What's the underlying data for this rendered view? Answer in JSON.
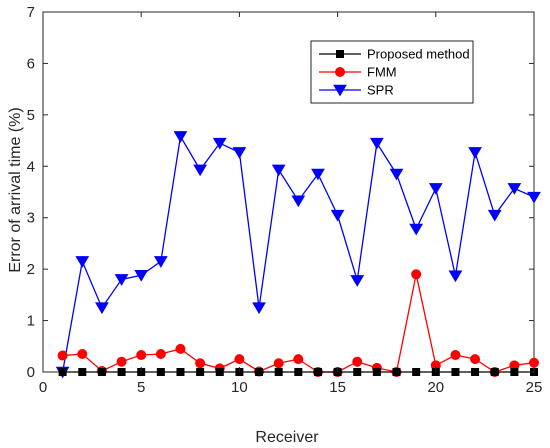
{
  "chart_data": {
    "type": "line",
    "xlabel": "Receiver",
    "ylabel": "Error of arrival time (%)",
    "xlim": [
      0,
      25
    ],
    "ylim": [
      0,
      7
    ],
    "xticks": [
      0,
      5,
      10,
      15,
      20,
      25
    ],
    "yticks": [
      0,
      1,
      2,
      3,
      4,
      5,
      6,
      7
    ],
    "grid": false,
    "legend_position": "top-right",
    "x": [
      1,
      2,
      3,
      4,
      5,
      6,
      7,
      8,
      9,
      10,
      11,
      12,
      13,
      14,
      15,
      16,
      17,
      18,
      19,
      20,
      21,
      22,
      23,
      24,
      25
    ],
    "series": [
      {
        "name": "Proposed method",
        "color": "#000000",
        "marker": "square",
        "values": [
          0,
          0,
          0,
          0,
          0,
          0,
          0,
          0,
          0,
          0,
          0,
          0,
          0,
          0,
          0,
          0,
          0,
          0,
          0,
          0,
          0,
          0,
          0,
          0,
          0
        ]
      },
      {
        "name": "FMM",
        "color": "#ff0000",
        "marker": "circle",
        "values": [
          0.32,
          0.35,
          0.02,
          0.2,
          0.33,
          0.35,
          0.45,
          0.17,
          0.07,
          0.25,
          0.01,
          0.17,
          0.25,
          0.0,
          0.0,
          0.2,
          0.08,
          0.0,
          1.9,
          0.13,
          0.33,
          0.25,
          0.0,
          0.13,
          0.18
        ]
      },
      {
        "name": "SPR",
        "color": "#0000ff",
        "marker": "triangle-down",
        "values": [
          0.0,
          2.15,
          1.25,
          1.8,
          1.88,
          2.15,
          4.58,
          3.93,
          4.45,
          4.27,
          1.25,
          3.93,
          3.33,
          3.85,
          3.05,
          1.78,
          4.45,
          3.85,
          2.78,
          3.57,
          1.87,
          4.27,
          3.05,
          3.57,
          3.4
        ]
      }
    ]
  }
}
